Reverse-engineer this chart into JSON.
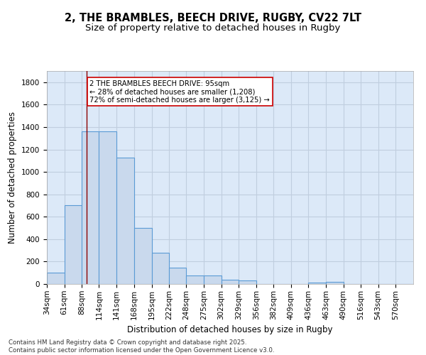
{
  "title_line1": "2, THE BRAMBLES, BEECH DRIVE, RUGBY, CV22 7LT",
  "title_line2": "Size of property relative to detached houses in Rugby",
  "xlabel": "Distribution of detached houses by size in Rugby",
  "ylabel": "Number of detached properties",
  "bar_edges": [
    34,
    61,
    88,
    114,
    141,
    168,
    195,
    222,
    248,
    275,
    302,
    329,
    356,
    382,
    409,
    436,
    463,
    490,
    516,
    543,
    570
  ],
  "bar_heights": [
    100,
    700,
    1360,
    1360,
    1130,
    500,
    280,
    145,
    75,
    75,
    35,
    30,
    0,
    0,
    0,
    15,
    20,
    0,
    0,
    0,
    0
  ],
  "bar_color": "#c9d9ed",
  "bar_edgecolor": "#5b9bd5",
  "bar_linewidth": 0.8,
  "property_line_x": 95,
  "property_line_color": "#8b0000",
  "annotation_text": "2 THE BRAMBLES BEECH DRIVE: 95sqm\n← 28% of detached houses are smaller (1,208)\n72% of semi-detached houses are larger (3,125) →",
  "annotation_box_edgecolor": "#cc0000",
  "annotation_box_facecolor": "#ffffff",
  "ylim": [
    0,
    1900
  ],
  "yticks": [
    0,
    200,
    400,
    600,
    800,
    1000,
    1200,
    1400,
    1600,
    1800
  ],
  "background_color": "#dce9f8",
  "grid_color": "#c0cedf",
  "footnote": "Contains HM Land Registry data © Crown copyright and database right 2025.\nContains public sector information licensed under the Open Government Licence v3.0.",
  "title_fontsize": 10.5,
  "subtitle_fontsize": 9.5,
  "xlabel_fontsize": 8.5,
  "ylabel_fontsize": 8.5,
  "annotation_fontsize": 7.2,
  "footnote_fontsize": 6.2,
  "tick_fontsize": 7.5
}
